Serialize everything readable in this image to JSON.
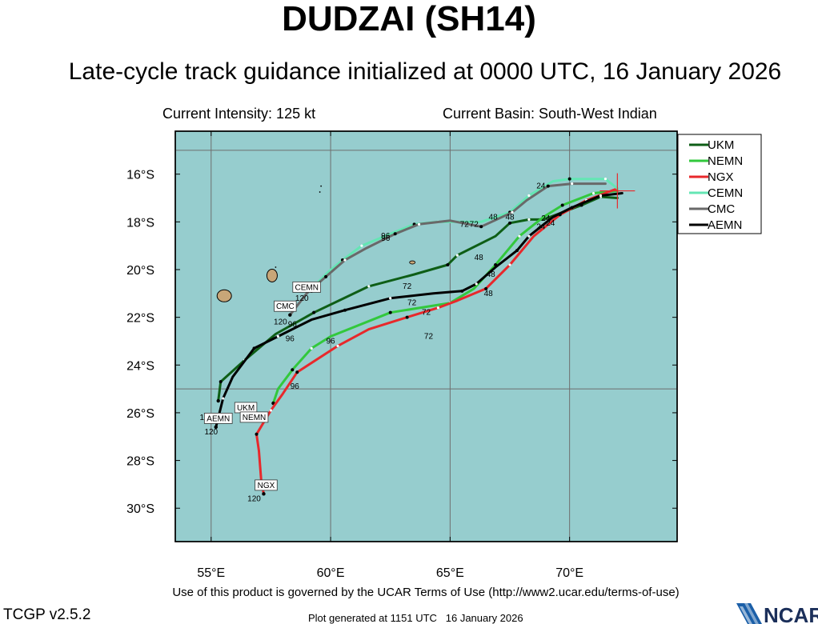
{
  "title": "DUDZAI (SH14)",
  "subtitle": "Late-cycle track guidance initialized at 0000 UTC, 16 January 2026",
  "current_intensity": "Current Intensity: 125 kt",
  "current_basin": "Current Basin: South-West Indian",
  "terms": "Use of this product is governed by the UCAR Terms of Use (http://www2.ucar.edu/terms-of-use)",
  "version": "TCGP v2.5.2",
  "generated": "Plot generated at 1151 UTC   16 January 2026",
  "logo_text": "NCAR",
  "colors": {
    "ocean": "#96cdce",
    "land": "#c8a678",
    "grid": "#6e6e6e",
    "current_position_marker": "#e8282b",
    "UKM": "#0e5e16",
    "NEMN": "#32c83c",
    "NGX": "#e8282b",
    "CEMN": "#64e6b4",
    "CMC": "#696969",
    "AEMN": "#000000"
  },
  "chart_data": {
    "type": "map-tracks",
    "lon_range": [
      53.5,
      74.5
    ],
    "lat_range": [
      -31.4,
      -14.2
    ],
    "x_ticks": [
      {
        "lon": 55,
        "label": "55°E"
      },
      {
        "lon": 60,
        "label": "60°E"
      },
      {
        "lon": 65,
        "label": "65°E"
      },
      {
        "lon": 70,
        "label": "70°E"
      }
    ],
    "y_ticks": [
      {
        "lat": -16,
        "label": "16°S"
      },
      {
        "lat": -18,
        "label": "18°S"
      },
      {
        "lat": -20,
        "label": "20°S"
      },
      {
        "lat": -22,
        "label": "22°S"
      },
      {
        "lat": -24,
        "label": "24°S"
      },
      {
        "lat": -26,
        "label": "26°S"
      },
      {
        "lat": -28,
        "label": "28°S"
      },
      {
        "lat": -30,
        "label": "30°S"
      }
    ],
    "grid_lons": [
      55,
      60,
      65,
      70
    ],
    "grid_lats": [
      -15,
      -25
    ],
    "legend_position": "top-right, outside plot",
    "current_position": {
      "lon": 72.0,
      "lat": -16.7
    },
    "series": [
      {
        "name": "UKM",
        "end_label": "UKM",
        "points": [
          [
            72.0,
            -17.0
          ],
          [
            71.3,
            -16.95
          ],
          [
            70.5,
            -17.3
          ],
          [
            68.9,
            -17.9
          ],
          [
            68.3,
            -17.9
          ],
          [
            67.5,
            -18.05
          ],
          [
            66.9,
            -18.6
          ],
          [
            65.3,
            -19.4
          ],
          [
            64.9,
            -19.8
          ],
          [
            63.5,
            -20.2
          ],
          [
            61.6,
            -20.7
          ],
          [
            59.3,
            -21.8
          ],
          [
            57.7,
            -22.7
          ],
          [
            56.4,
            -23.8
          ],
          [
            55.4,
            -24.7
          ],
          [
            55.3,
            -25.5
          ]
        ],
        "hour_labels": [
          {
            "text": "120",
            "lon": 54.8,
            "lat": -26.3
          }
        ]
      },
      {
        "name": "NEMN",
        "end_label": "NEMN",
        "points": [
          [
            72.0,
            -16.7
          ],
          [
            71.0,
            -16.8
          ],
          [
            69.7,
            -17.3
          ],
          [
            68.9,
            -17.8
          ],
          [
            67.9,
            -18.6
          ],
          [
            66.9,
            -19.8
          ],
          [
            66.0,
            -20.8
          ],
          [
            65.0,
            -21.4
          ],
          [
            62.5,
            -21.8
          ],
          [
            60.0,
            -22.8
          ],
          [
            59.2,
            -23.3
          ],
          [
            58.4,
            -24.2
          ],
          [
            57.8,
            -25.0
          ],
          [
            57.6,
            -25.6
          ]
        ],
        "hour_labels": [
          {
            "text": "72",
            "lon": 64.0,
            "lat": -21.9
          },
          {
            "text": "120",
            "lon": 56.8,
            "lat": -26.2
          }
        ]
      },
      {
        "name": "NGX",
        "end_label": "NGX",
        "points": [
          [
            72.0,
            -16.6
          ],
          [
            70.7,
            -17.1
          ],
          [
            69.6,
            -17.7
          ],
          [
            68.5,
            -18.6
          ],
          [
            67.5,
            -19.8
          ],
          [
            66.5,
            -20.8
          ],
          [
            65.3,
            -21.3
          ],
          [
            64.5,
            -21.6
          ],
          [
            63.2,
            -22.0
          ],
          [
            61.6,
            -22.5
          ],
          [
            60.3,
            -23.2
          ],
          [
            58.6,
            -24.3
          ],
          [
            58.0,
            -25.2
          ],
          [
            57.5,
            -25.9
          ],
          [
            56.9,
            -26.9
          ],
          [
            57.0,
            -27.6
          ],
          [
            57.1,
            -28.9
          ],
          [
            57.2,
            -29.4
          ]
        ],
        "hour_labels": [
          {
            "text": "120",
            "lon": 56.8,
            "lat": -29.7
          }
        ]
      },
      {
        "name": "CEMN",
        "end_label": "CEMN",
        "points": [
          [
            72.0,
            -16.6
          ],
          [
            71.5,
            -16.2
          ],
          [
            70.0,
            -16.2
          ],
          [
            69.3,
            -16.3
          ],
          [
            68.3,
            -16.9
          ],
          [
            67.5,
            -17.6
          ],
          [
            66.3,
            -18.0
          ],
          [
            64.5,
            -18.0
          ],
          [
            63.5,
            -18.1
          ],
          [
            62.5,
            -18.5
          ],
          [
            61.3,
            -19.0
          ],
          [
            60.5,
            -19.6
          ],
          [
            59.9,
            -20.1
          ],
          [
            59.4,
            -20.6
          ],
          [
            59.2,
            -20.9
          ]
        ],
        "hour_labels": [
          {
            "text": "96",
            "lon": 62.3,
            "lat": -18.7
          },
          {
            "text": "120",
            "lon": 58.8,
            "lat": -21.3
          }
        ]
      },
      {
        "name": "CMC",
        "end_label": "CMC",
        "points": [
          [
            71.5,
            -16.4
          ],
          [
            70.1,
            -16.4
          ],
          [
            69.1,
            -16.5
          ],
          [
            68.2,
            -17.1
          ],
          [
            67.6,
            -17.6
          ],
          [
            66.3,
            -18.2
          ],
          [
            65.0,
            -17.95
          ],
          [
            63.7,
            -18.1
          ],
          [
            62.7,
            -18.5
          ],
          [
            61.5,
            -19.1
          ],
          [
            60.6,
            -19.6
          ],
          [
            59.8,
            -20.3
          ],
          [
            59.0,
            -21.0
          ],
          [
            58.3,
            -21.9
          ]
        ],
        "hour_labels": [
          {
            "text": "24",
            "lon": 68.8,
            "lat": -16.6
          },
          {
            "text": "48",
            "lon": 67.5,
            "lat": -17.9
          },
          {
            "text": "72",
            "lon": 65.6,
            "lat": -18.2
          },
          {
            "text": "96",
            "lon": 62.3,
            "lat": -18.8
          },
          {
            "text": "120",
            "lon": 57.9,
            "lat": -22.3
          }
        ]
      },
      {
        "name": "AEMN",
        "end_label": "AEMN",
        "points": [
          [
            72.2,
            -16.8
          ],
          [
            71.3,
            -16.9
          ],
          [
            70.1,
            -17.4
          ],
          [
            69.3,
            -17.8
          ],
          [
            68.3,
            -18.6
          ],
          [
            67.8,
            -19.2
          ],
          [
            66.9,
            -19.9
          ],
          [
            66.1,
            -20.6
          ],
          [
            65.5,
            -20.9
          ],
          [
            64.3,
            -21.0
          ],
          [
            62.5,
            -21.2
          ],
          [
            60.6,
            -21.7
          ],
          [
            59.2,
            -22.1
          ],
          [
            57.8,
            -22.8
          ],
          [
            56.8,
            -23.3
          ],
          [
            55.9,
            -24.5
          ],
          [
            55.5,
            -25.4
          ],
          [
            55.2,
            -26.6
          ]
        ],
        "hour_labels": [
          {
            "text": "24",
            "lon": 68.8,
            "lat": -18.3
          },
          {
            "text": "48",
            "lon": 66.7,
            "lat": -20.3
          },
          {
            "text": "72",
            "lon": 63.4,
            "lat": -21.5
          },
          {
            "text": "96",
            "lon": 58.3,
            "lat": -23.0
          },
          {
            "text": "120",
            "lon": 55.0,
            "lat": -26.9
          }
        ]
      }
    ],
    "extra_hour_labels": [
      {
        "text": "24",
        "lon": 69.0,
        "lat": -17.95
      },
      {
        "text": "24",
        "lon": 69.2,
        "lat": -18.15
      },
      {
        "text": "48",
        "lon": 66.8,
        "lat": -17.9
      },
      {
        "text": "48",
        "lon": 66.2,
        "lat": -19.6
      },
      {
        "text": "48",
        "lon": 66.6,
        "lat": -21.1
      },
      {
        "text": "72",
        "lon": 66.0,
        "lat": -18.2
      },
      {
        "text": "72",
        "lon": 63.2,
        "lat": -20.8
      },
      {
        "text": "72",
        "lon": 64.1,
        "lat": -22.9
      },
      {
        "text": "96",
        "lon": 58.4,
        "lat": -22.4
      },
      {
        "text": "96",
        "lon": 60.0,
        "lat": -23.1
      },
      {
        "text": "96",
        "lon": 58.5,
        "lat": -25.0
      }
    ]
  }
}
